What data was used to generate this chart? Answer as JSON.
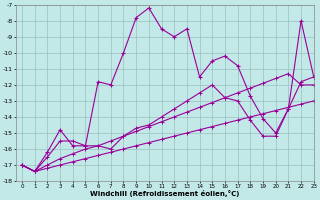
{
  "xlabel": "Windchill (Refroidissement éolien,°C)",
  "xlim": [
    -0.5,
    23
  ],
  "ylim": [
    -18,
    -7
  ],
  "xticks": [
    0,
    1,
    2,
    3,
    4,
    5,
    6,
    7,
    8,
    9,
    10,
    11,
    12,
    13,
    14,
    15,
    16,
    17,
    18,
    19,
    20,
    21,
    22,
    23
  ],
  "yticks": [
    -7,
    -8,
    -9,
    -10,
    -11,
    -12,
    -13,
    -14,
    -15,
    -16,
    -17,
    -18
  ],
  "background_color": "#c2e8e8",
  "grid_color": "#9bbfbf",
  "line_color": "#990099",
  "line1_x": [
    0,
    1,
    2,
    3,
    4,
    5,
    6,
    7,
    8,
    9,
    10,
    11,
    12,
    13,
    14,
    15,
    16,
    17,
    18,
    19,
    20,
    21,
    22,
    23
  ],
  "line1_y": [
    -17.0,
    -17.4,
    -16.2,
    -14.8,
    -15.8,
    -15.8,
    -11.8,
    -12.0,
    -10.0,
    -7.8,
    -7.2,
    -8.5,
    -9.0,
    -8.5,
    -11.5,
    -10.5,
    -10.2,
    -10.8,
    -12.7,
    -14.1,
    -15.0,
    -13.5,
    -8.0,
    -11.5
  ],
  "line2_x": [
    0,
    1,
    2,
    3,
    4,
    5,
    6,
    7,
    8,
    9,
    10,
    11,
    12,
    13,
    14,
    15,
    16,
    17,
    18,
    19,
    20,
    21,
    22,
    23
  ],
  "line2_y": [
    -17.0,
    -17.4,
    -16.5,
    -15.5,
    -15.5,
    -15.8,
    -15.8,
    -16.0,
    -15.2,
    -14.7,
    -14.5,
    -14.0,
    -13.5,
    -13.0,
    -12.5,
    -12.0,
    -12.8,
    -13.0,
    -14.2,
    -15.2,
    -15.2,
    -13.5,
    -11.8,
    -11.5
  ],
  "line3_x": [
    0,
    1,
    2,
    3,
    4,
    5,
    6,
    7,
    8,
    9,
    10,
    11,
    12,
    13,
    14,
    15,
    16,
    17,
    18,
    19,
    20,
    21,
    22,
    23
  ],
  "line3_y": [
    -17.0,
    -17.4,
    -17.0,
    -16.6,
    -16.3,
    -16.0,
    -15.8,
    -15.5,
    -15.2,
    -14.9,
    -14.6,
    -14.3,
    -14.0,
    -13.7,
    -13.4,
    -13.1,
    -12.8,
    -12.5,
    -12.2,
    -11.9,
    -11.6,
    -11.3,
    -12.0,
    -12.0
  ],
  "line4_x": [
    0,
    1,
    2,
    3,
    4,
    5,
    6,
    7,
    8,
    9,
    10,
    11,
    12,
    13,
    14,
    15,
    16,
    17,
    18,
    19,
    20,
    21,
    22,
    23
  ],
  "line4_y": [
    -17.0,
    -17.4,
    -17.2,
    -17.0,
    -16.8,
    -16.6,
    -16.4,
    -16.2,
    -16.0,
    -15.8,
    -15.6,
    -15.4,
    -15.2,
    -15.0,
    -14.8,
    -14.6,
    -14.4,
    -14.2,
    -14.0,
    -13.8,
    -13.6,
    -13.4,
    -13.2,
    -13.0
  ]
}
